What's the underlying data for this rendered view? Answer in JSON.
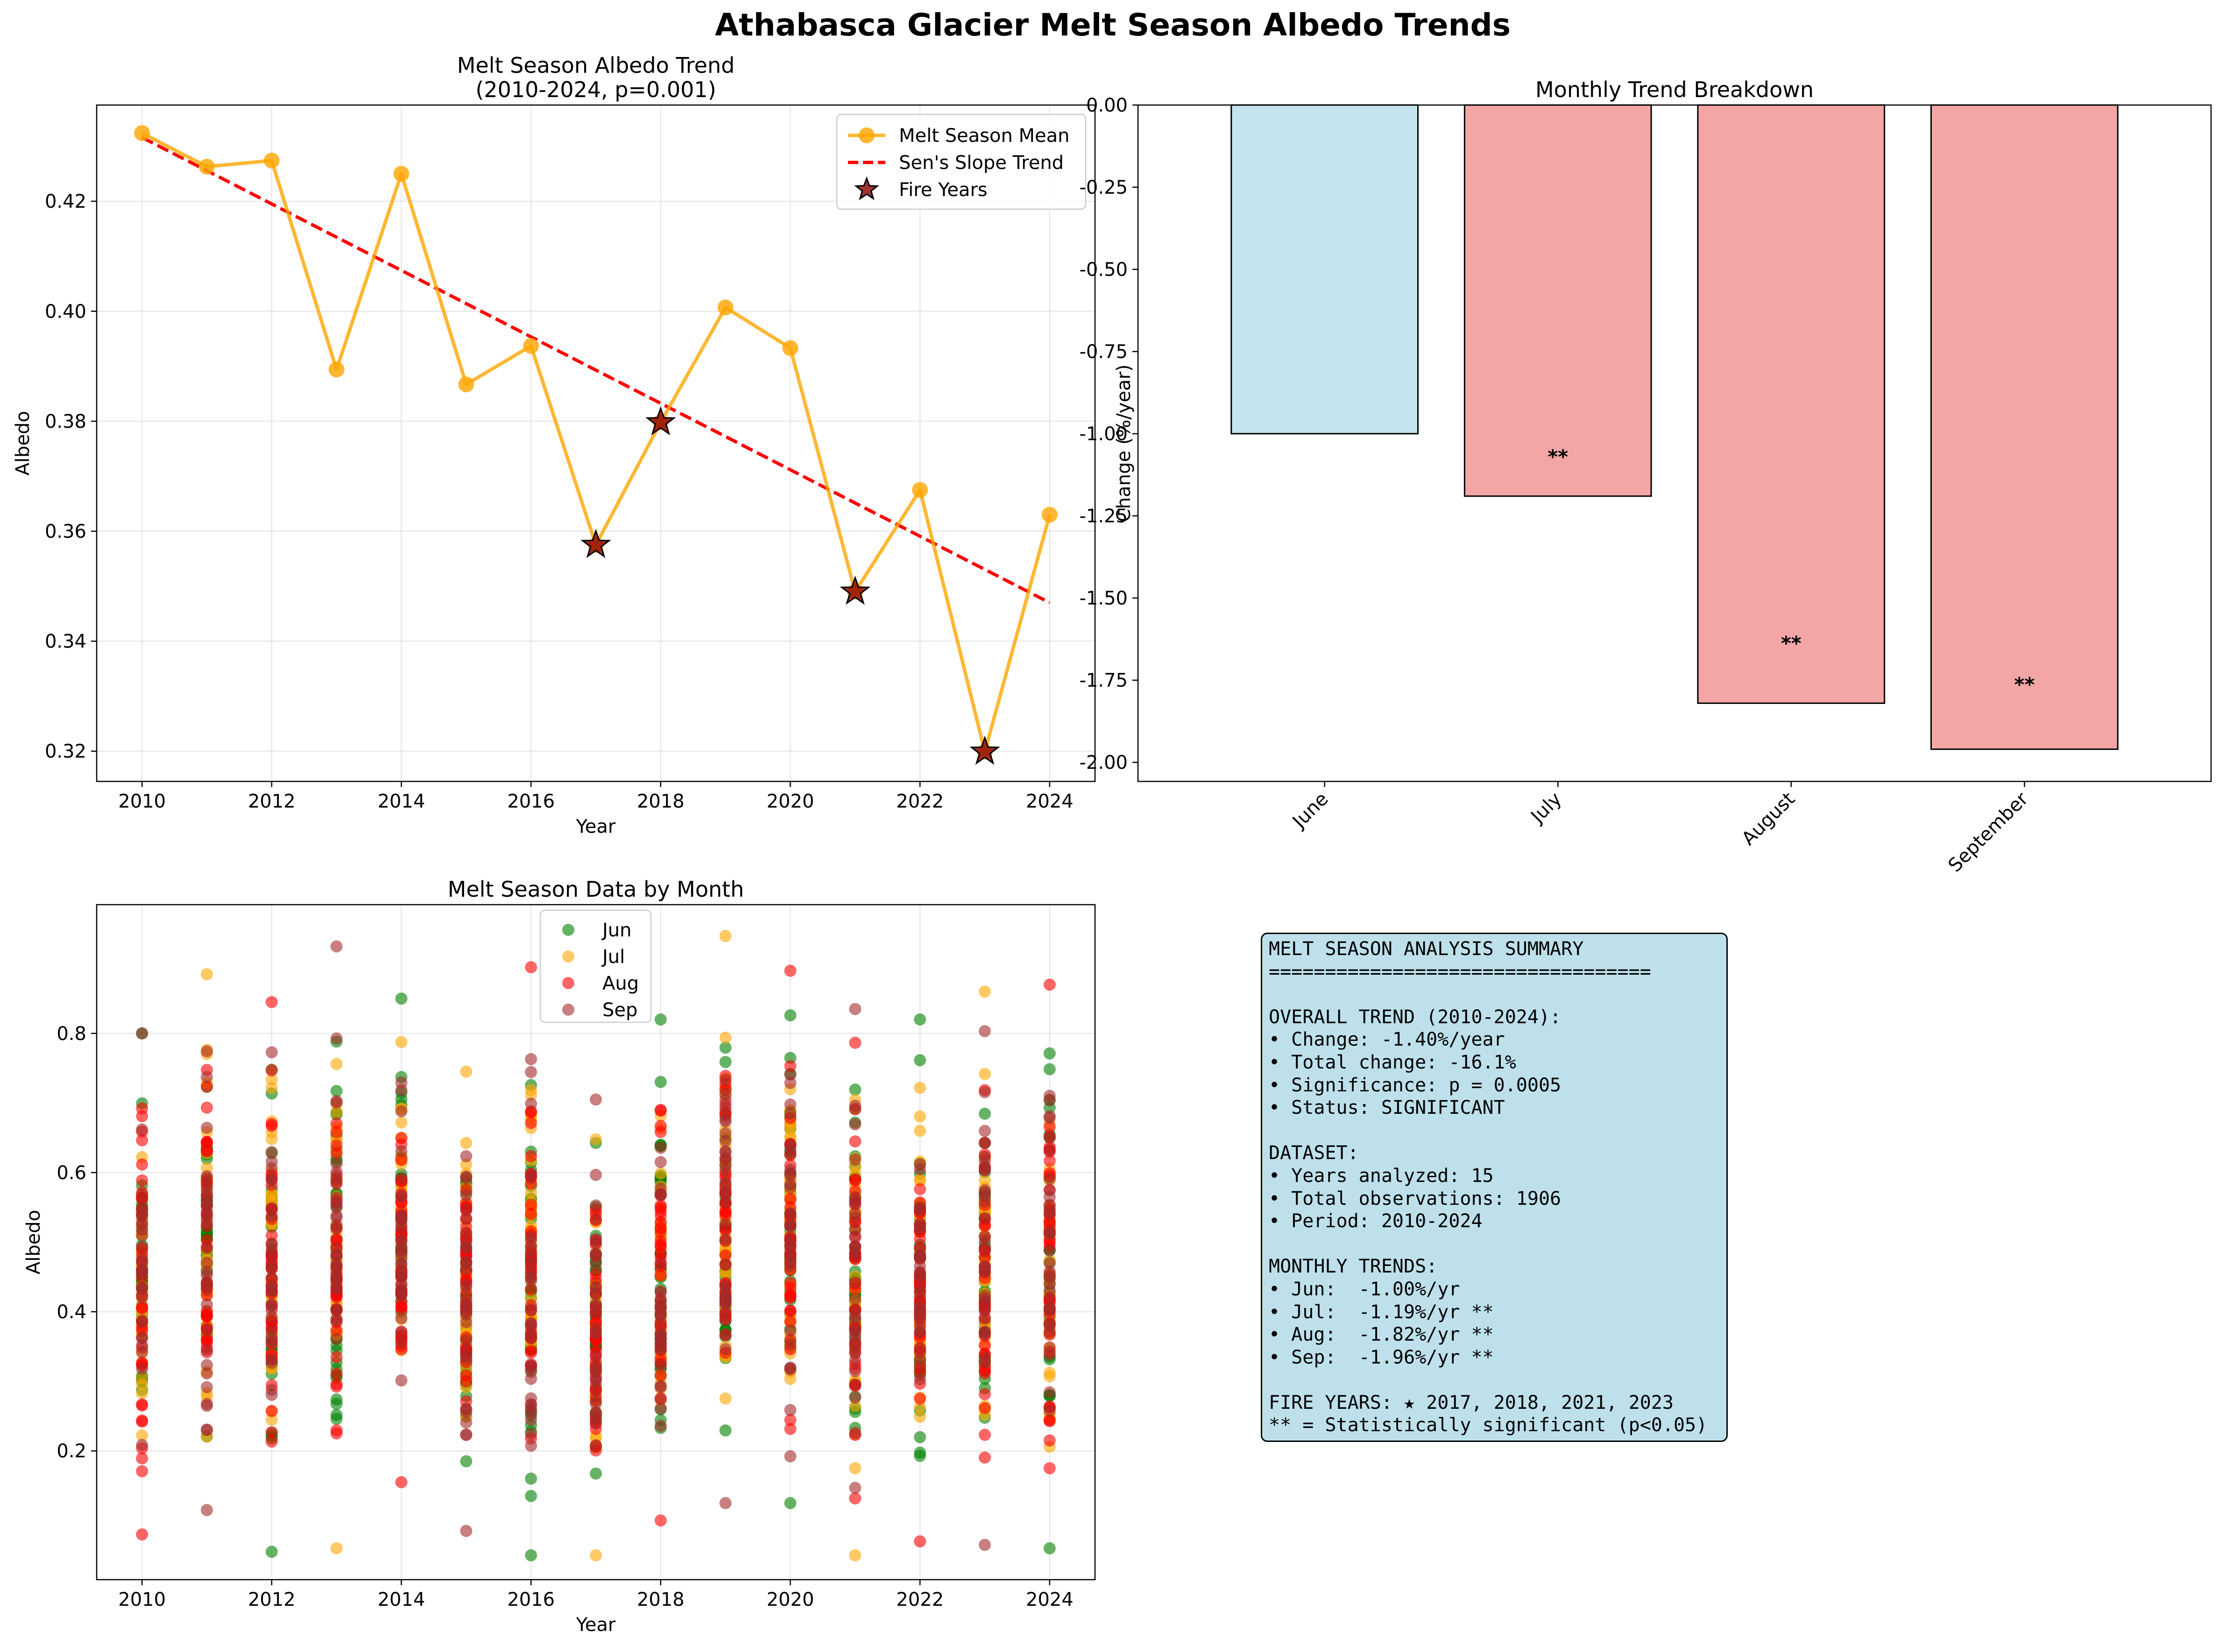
{
  "figure": {
    "title": "Athabasca Glacier Melt Season Albedo Trends"
  },
  "chart_data": [
    {
      "type": "line",
      "title": "Melt Season Albedo Trend\n(2010-2024, p=0.001)",
      "xlabel": "Year",
      "ylabel": "Albedo",
      "xlim": [
        2009.3,
        2024.7
      ],
      "ylim": [
        0.3145,
        0.4375
      ],
      "xticks": [
        2010,
        2012,
        2014,
        2016,
        2018,
        2020,
        2022,
        2024
      ],
      "yticks": [
        0.32,
        0.34,
        0.36,
        0.38,
        0.4,
        0.42
      ],
      "grid": true,
      "legend": "top-right",
      "series": [
        {
          "name": "Melt Season Mean",
          "color": "#ffa500",
          "x": [
            2010,
            2011,
            2012,
            2013,
            2014,
            2015,
            2016,
            2017,
            2018,
            2019,
            2020,
            2021,
            2022,
            2023,
            2024
          ],
          "y": [
            0.4324,
            0.4263,
            0.4274,
            0.3894,
            0.425,
            0.3867,
            0.3937,
            0.3575,
            0.3798,
            0.4007,
            0.3933,
            0.349,
            0.3675,
            0.3199,
            0.363
          ]
        },
        {
          "name": "Sen's Slope Trend",
          "color": "#ff0000",
          "style": "dashed",
          "x": [
            2010,
            2024
          ],
          "y": [
            0.4316,
            0.347
          ]
        },
        {
          "name": "Fire Years",
          "color": "#8b0000",
          "marker": "star",
          "x": [
            2017,
            2018,
            2021,
            2023
          ],
          "y": [
            0.3575,
            0.3798,
            0.349,
            0.3199
          ]
        }
      ]
    },
    {
      "type": "bar",
      "title": "Monthly Trend Breakdown",
      "ylabel": "Change (%/year)",
      "categories": [
        "June",
        "July",
        "August",
        "September"
      ],
      "values": [
        -1.0,
        -1.19,
        -1.82,
        -1.96
      ],
      "colors": [
        "#add8e6",
        "#f08080",
        "#f08080",
        "#f08080"
      ],
      "annotations": [
        "",
        "**",
        "**",
        "**"
      ],
      "ylim": [
        -2.058,
        0.0
      ],
      "yticks": [
        0.0,
        -0.25,
        -0.5,
        -0.75,
        -1.0,
        -1.25,
        -1.5,
        -1.75,
        -2.0
      ],
      "grid": false
    },
    {
      "type": "scatter",
      "title": "Melt Season Data by Month",
      "xlabel": "Year",
      "ylabel": "Albedo",
      "xlim": [
        2009.3,
        2024.7
      ],
      "ylim": [
        0.015,
        0.985
      ],
      "xticks": [
        2010,
        2012,
        2014,
        2016,
        2018,
        2020,
        2022,
        2024
      ],
      "yticks": [
        0.2,
        0.4,
        0.6,
        0.8
      ],
      "grid": true,
      "legend": "top-center",
      "note": "127 observations per year spread over albedo 0.05-0.94",
      "series": [
        {
          "name": "Jun",
          "color": "#008000"
        },
        {
          "name": "Jul",
          "color": "#ffa500"
        },
        {
          "name": "Aug",
          "color": "#ff0000"
        },
        {
          "name": "Sep",
          "color": "#a52a2a"
        }
      ],
      "extremes": {
        "years": [
          2010,
          2011,
          2012,
          2013,
          2014,
          2015,
          2016,
          2017,
          2018,
          2019,
          2020,
          2021,
          2022,
          2023,
          2024
        ],
        "max": [
          0.8,
          0.885,
          0.845,
          0.925,
          0.85,
          0.745,
          0.895,
          0.705,
          0.82,
          0.94,
          0.89,
          0.835,
          0.82,
          0.86,
          0.87
        ],
        "min": [
          0.08,
          0.115,
          0.055,
          0.06,
          0.155,
          0.085,
          0.05,
          0.05,
          0.1,
          0.125,
          0.125,
          0.05,
          0.07,
          0.065,
          0.06
        ]
      }
    }
  ],
  "summary": {
    "lines": [
      "MELT SEASON ANALYSIS SUMMARY",
      "==================================",
      "",
      "OVERALL TREND (2010-2024):",
      "• Change: -1.40%/year",
      "• Total change: -16.1%",
      "• Significance: p = 0.0005",
      "• Status: SIGNIFICANT",
      "",
      "DATASET:",
      "• Years analyzed: 15",
      "• Total observations: 1906",
      "• Period: 2010-2024",
      "",
      "MONTHLY TRENDS:",
      "• Jun:  -1.00%/yr",
      "• Jul:  -1.19%/yr **",
      "• Aug:  -1.82%/yr **",
      "• Sep:  -1.96%/yr **",
      "",
      "FIRE YEARS: ★ 2017, 2018, 2021, 2023",
      "** = Statistically significant (p<0.05)"
    ]
  }
}
